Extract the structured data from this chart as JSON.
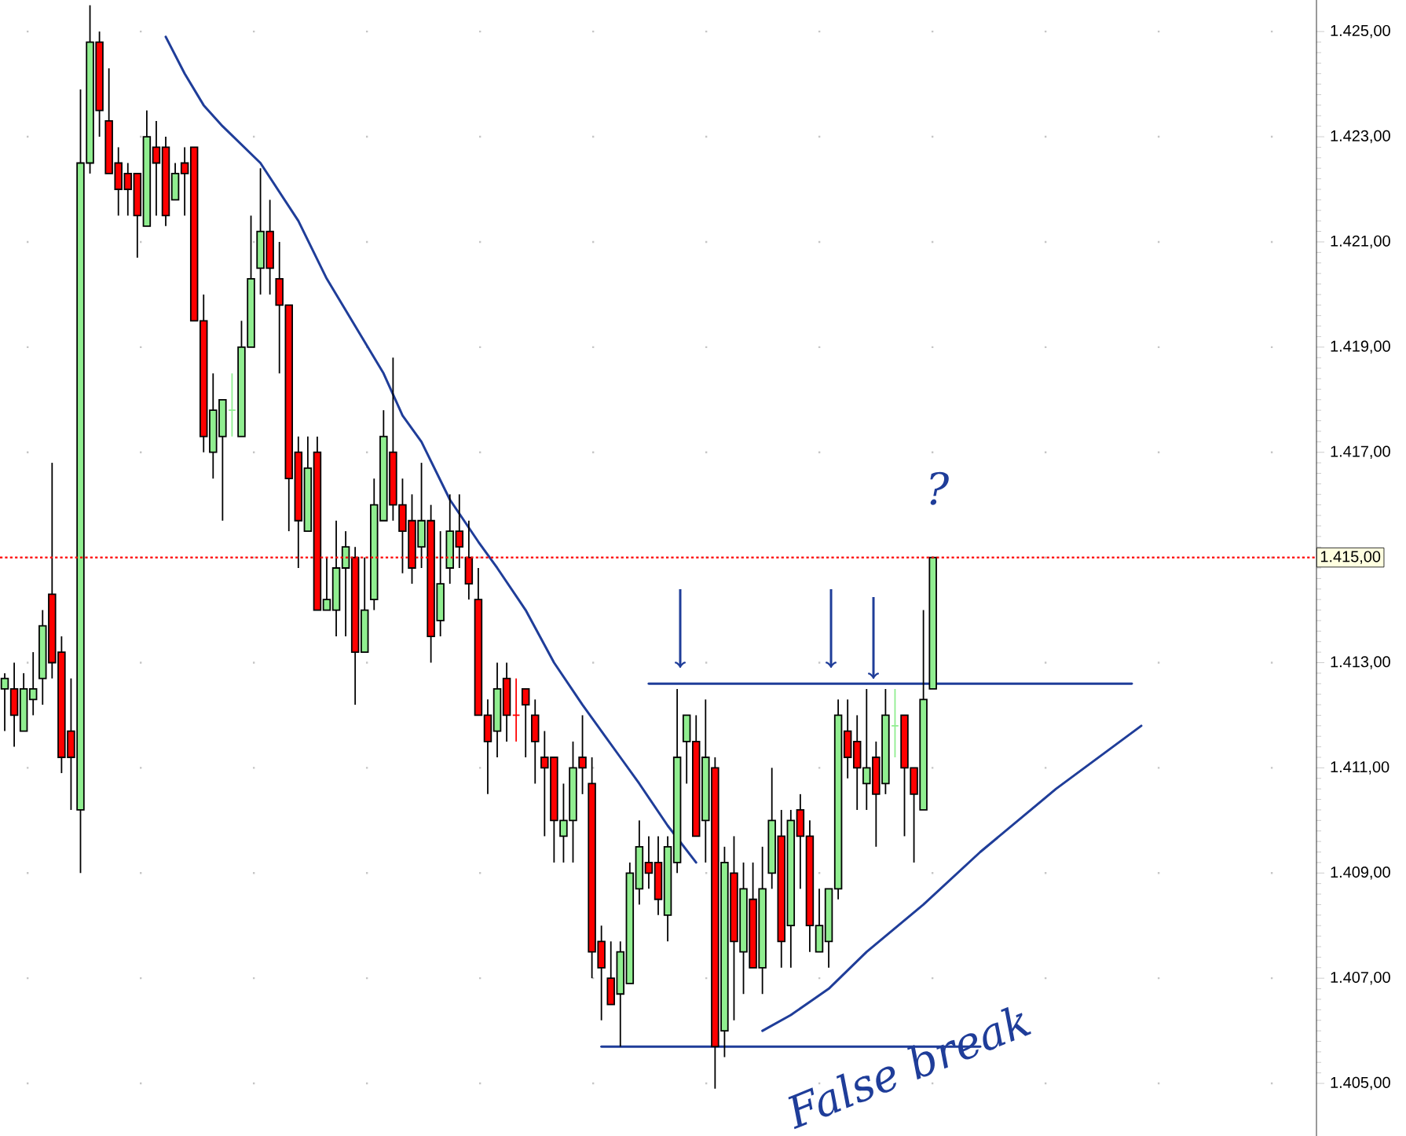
{
  "chart_data": {
    "type": "candlestick",
    "categories": [
      null,
      null,
      null,
      null,
      null,
      null,
      null,
      null,
      null,
      null,
      null,
      null,
      null,
      null,
      null,
      null,
      null,
      null,
      null,
      null,
      null,
      null,
      null,
      null,
      null,
      null,
      null,
      null,
      null,
      null,
      null,
      null,
      null,
      null,
      null,
      null,
      null,
      null,
      null,
      null,
      null,
      null,
      null,
      null,
      null,
      null,
      null,
      null,
      null,
      null,
      null,
      null,
      null,
      null,
      null,
      null,
      null,
      null,
      null,
      null,
      null,
      null,
      null,
      null,
      null,
      null,
      null,
      null,
      null,
      null,
      null,
      null,
      null,
      null,
      null,
      null,
      null,
      null,
      null,
      null,
      null,
      null,
      null,
      null,
      null,
      null,
      null,
      null,
      null,
      null,
      null,
      null,
      null,
      null,
      null,
      null,
      null,
      null,
      null,
      null,
      null,
      null,
      null,
      null,
      null,
      null,
      null,
      null,
      null,
      null,
      null,
      null,
      null,
      null,
      null,
      null,
      null,
      null,
      null,
      null,
      null,
      null,
      null,
      null,
      null,
      null,
      null,
      null,
      null,
      null,
      null,
      null,
      null,
      null,
      null,
      null,
      null,
      null,
      null
    ],
    "ohlc": [
      [
        1412.5,
        1412.8,
        1411.7,
        1412.7
      ],
      [
        1412.5,
        1413,
        1411.4,
        1412
      ],
      [
        1411.7,
        1412.8,
        1411.7,
        1412.5
      ],
      [
        1412.3,
        1413.2,
        1412,
        1412.5
      ],
      [
        1412.7,
        1414,
        1412.2,
        1413.7
      ],
      [
        1414.3,
        1416.8,
        1412.7,
        1413
      ],
      [
        1413.2,
        1413.5,
        1410.9,
        1411.2
      ],
      [
        1411.7,
        1412.7,
        1410.2,
        1411.2
      ],
      [
        1410.2,
        1423.9,
        1409,
        1422.5
      ],
      [
        1422.5,
        1425.5,
        1422.3,
        1424.8
      ],
      [
        1424.8,
        1425,
        1423,
        1423.5
      ],
      [
        1423.3,
        1424.3,
        1422.3,
        1422.3
      ],
      [
        1422.5,
        1422.8,
        1421.5,
        1422
      ],
      [
        1422.3,
        1422.5,
        1421.5,
        1422
      ],
      [
        1422.3,
        1422.3,
        1420.7,
        1421.5
      ],
      [
        1421.3,
        1423.5,
        1421.3,
        1423
      ],
      [
        1422.8,
        1423.3,
        1421.5,
        1422.5
      ],
      [
        1422.8,
        1423,
        1421.3,
        1421.5
      ],
      [
        1421.8,
        1422.5,
        1421.8,
        1422.3
      ],
      [
        1422.5,
        1422.8,
        1421.5,
        1422.3
      ],
      [
        1422.8,
        1422.8,
        1419.5,
        1419.5
      ],
      [
        1419.5,
        1420,
        1417,
        1417.3
      ],
      [
        1417,
        1418.5,
        1416.5,
        1417.8
      ],
      [
        1417.3,
        1418,
        1415.7,
        1418
      ],
      [
        1417.8,
        1418.5,
        1417.3,
        1417.8
      ],
      [
        1417.3,
        1419.5,
        1417.3,
        1419
      ],
      [
        1419,
        1421.5,
        1419,
        1420.3
      ],
      [
        1420.5,
        1422.4,
        1420,
        1421.2
      ],
      [
        1421.2,
        1421.8,
        1420,
        1420.5
      ],
      [
        1420.3,
        1421,
        1418.5,
        1419.8
      ],
      [
        1419.8,
        1419.8,
        1415.5,
        1416.5
      ],
      [
        1417,
        1417.3,
        1414.8,
        1415.7
      ],
      [
        1415.5,
        1417.3,
        1415.5,
        1416.7
      ],
      [
        1417,
        1417.3,
        1414,
        1414
      ],
      [
        1414,
        1415,
        1414,
        1414.2
      ],
      [
        1414,
        1415.7,
        1413.5,
        1414.8
      ],
      [
        1414.8,
        1415.5,
        1413.5,
        1415.2
      ],
      [
        1415,
        1415.2,
        1412.2,
        1413.2
      ],
      [
        1413.2,
        1415,
        1413.2,
        1414
      ],
      [
        1414.2,
        1416.5,
        1414,
        1416
      ],
      [
        1415.7,
        1417.8,
        1415.7,
        1417.3
      ],
      [
        1417,
        1418.8,
        1415.7,
        1416
      ],
      [
        1416,
        1416.5,
        1414.7,
        1415.5
      ],
      [
        1415.7,
        1416.2,
        1414.5,
        1414.8
      ],
      [
        1415.2,
        1416.8,
        1414.8,
        1415.7
      ],
      [
        1415.7,
        1416,
        1413,
        1413.5
      ],
      [
        1413.8,
        1415.5,
        1413.5,
        1414.5
      ],
      [
        1414.8,
        1416.2,
        1414.5,
        1415.5
      ],
      [
        1415.5,
        1416.2,
        1414.8,
        1415.2
      ],
      [
        1415,
        1415.7,
        1414.2,
        1414.5
      ],
      [
        1414.2,
        1414.8,
        1412,
        1412
      ],
      [
        1412,
        1412.3,
        1410.5,
        1411.5
      ],
      [
        1411.7,
        1413,
        1411.2,
        1412.5
      ],
      [
        1412.7,
        1413,
        1411.5,
        1412
      ],
      [
        1412,
        1412.7,
        1411.5,
        1412
      ],
      [
        1412.5,
        1412.5,
        1411.2,
        1412.2
      ],
      [
        1412,
        1412.3,
        1410.7,
        1411.5
      ],
      [
        1411.2,
        1411.7,
        1409.7,
        1411
      ],
      [
        1411.2,
        1411.2,
        1409.2,
        1410
      ],
      [
        1409.7,
        1410.7,
        1409.2,
        1410
      ],
      [
        1410,
        1411.5,
        1409.2,
        1411
      ],
      [
        1411.2,
        1412,
        1410.5,
        1411
      ],
      [
        1410.7,
        1411.2,
        1407,
        1407.5
      ],
      [
        1407.7,
        1408,
        1406.2,
        1407.2
      ],
      [
        1407,
        1407.7,
        1406.5,
        1406.5
      ],
      [
        1406.7,
        1407.7,
        1405.7,
        1407.5
      ],
      [
        1406.9,
        1409.2,
        1406.9,
        1409
      ],
      [
        1408.7,
        1410,
        1408.4,
        1409.5
      ],
      [
        1409.2,
        1409.7,
        1408.7,
        1409
      ],
      [
        1409.2,
        1409.7,
        1408.2,
        1408.5
      ],
      [
        1408.2,
        1409.7,
        1407.7,
        1409.5
      ],
      [
        1409.2,
        1412.5,
        1409,
        1411.2
      ],
      [
        1411.5,
        1412,
        1410.7,
        1412
      ],
      [
        1411.5,
        1412,
        1409.7,
        1409.7
      ],
      [
        1410,
        1412.3,
        1409.2,
        1411.2
      ],
      [
        1411,
        1411.2,
        1404.9,
        1405.7
      ],
      [
        1406,
        1409.5,
        1405.5,
        1409.2
      ],
      [
        1409,
        1409.7,
        1406.2,
        1407.7
      ],
      [
        1407.5,
        1409.2,
        1406.7,
        1408.7
      ],
      [
        1408.5,
        1409.2,
        1407.2,
        1407.2
      ],
      [
        1407.2,
        1409.5,
        1406.7,
        1408.7
      ],
      [
        1409,
        1411,
        1408.7,
        1410
      ],
      [
        1409.7,
        1410.2,
        1407.2,
        1407.7
      ],
      [
        1408,
        1410.2,
        1407.2,
        1410
      ],
      [
        1410.2,
        1410.5,
        1408.7,
        1409.7
      ],
      [
        1409.7,
        1410,
        1407.5,
        1408
      ],
      [
        1407.5,
        1408.7,
        1407.5,
        1408
      ],
      [
        1407.7,
        1408.7,
        1407.2,
        1408.7
      ],
      [
        1408.7,
        1412.3,
        1408.5,
        1412
      ],
      [
        1411.7,
        1412.3,
        1410.8,
        1411.2
      ],
      [
        1411.5,
        1412,
        1410.2,
        1411
      ],
      [
        1410.7,
        1412.5,
        1410.2,
        1411
      ],
      [
        1411.2,
        1411.5,
        1409.5,
        1410.5
      ],
      [
        1410.7,
        1412.5,
        1410.5,
        1412
      ],
      [
        1411.8,
        1412.5,
        1411.2,
        1411.8
      ],
      [
        1412,
        1412,
        1409.7,
        1411
      ],
      [
        1411,
        1411,
        1409.2,
        1410.5
      ],
      [
        1410.2,
        1414,
        1410.2,
        1412.3
      ],
      [
        1412.5,
        1415,
        1412.5,
        1415
      ],
      null,
      null,
      null,
      null,
      null,
      null,
      null,
      null,
      null,
      null,
      null,
      null,
      null,
      null,
      null,
      null,
      null,
      null,
      null,
      null,
      null,
      null,
      null,
      null,
      null,
      null,
      null,
      null,
      null,
      null,
      null,
      null,
      null,
      null,
      null,
      null,
      null,
      null,
      null,
      null
    ],
    "colors": [
      "#90ee90",
      "#ff0000",
      "#90ee90",
      "#90ee90",
      "#90ee90",
      "#ff0000",
      "#ff0000",
      "#ff0000",
      "#90ee90",
      "#90ee90",
      "#ff0000",
      "#ff0000",
      "#ff0000",
      "#ff0000",
      "#ff0000",
      "#90ee90",
      "#ff0000",
      "#ff0000",
      "#90ee90",
      "#ff0000",
      "#ff0000",
      "#ff0000",
      "#90ee90",
      "#90ee90",
      "#90ee90",
      "#90ee90",
      "#90ee90",
      "#90ee90",
      "#ff0000",
      "#ff0000",
      "#ff0000",
      "#ff0000",
      "#90ee90",
      "#ff0000",
      "#90ee90",
      "#90ee90",
      "#90ee90",
      "#ff0000",
      "#90ee90",
      "#90ee90",
      "#90ee90",
      "#ff0000",
      "#ff0000",
      "#ff0000",
      "#90ee90",
      "#ff0000",
      "#90ee90",
      "#90ee90",
      "#ff0000",
      "#ff0000",
      "#ff0000",
      "#ff0000",
      "#90ee90",
      "#ff0000",
      "#ff0000",
      "#ff0000",
      "#ff0000",
      "#ff0000",
      "#ff0000",
      "#90ee90",
      "#90ee90",
      "#ff0000",
      "#ff0000",
      "#ff0000",
      "#ff0000",
      "#90ee90",
      "#90ee90",
      "#90ee90",
      "#ff0000",
      "#ff0000",
      "#90ee90",
      "#90ee90",
      "#90ee90",
      "#ff0000",
      "#90ee90",
      "#ff0000",
      "#90ee90",
      "#ff0000",
      "#90ee90",
      "#ff0000",
      "#90ee90",
      "#90ee90",
      "#ff0000",
      "#90ee90",
      "#ff0000",
      "#ff0000",
      "#90ee90",
      "#90ee90",
      "#90ee90",
      "#ff0000",
      "#ff0000",
      "#90ee90",
      "#ff0000",
      "#90ee90",
      "#90ee90",
      "#ff0000",
      "#ff0000",
      "#90ee90",
      "#90ee90",
      null,
      null,
      null,
      null,
      null,
      null,
      null,
      null,
      null,
      null,
      null,
      null,
      null,
      null,
      null,
      null,
      null,
      null,
      null,
      null,
      null,
      null,
      null,
      null,
      null,
      null,
      null,
      null,
      null,
      null,
      null,
      null,
      null,
      null,
      null,
      null,
      null,
      null,
      null,
      null
    ],
    "series": [
      {
        "type": "line",
        "color": "#1f3d99",
        "values": [
          null,
          null,
          null,
          null,
          null,
          null,
          null,
          null,
          null,
          null,
          null,
          null,
          null,
          null,
          null,
          null,
          null,
          1424.9,
          null,
          1424.2,
          null,
          1423.6,
          null,
          1423.2,
          null,
          null,
          null,
          1422.5,
          null,
          null,
          null,
          1421.4,
          null,
          null,
          1420.3,
          null,
          null,
          1419.4,
          null,
          null,
          1418.5,
          null,
          1417.7,
          null,
          1417.2,
          null,
          null,
          1416.1,
          null,
          null,
          1415.3,
          null,
          1414.8,
          null,
          null,
          1414,
          null,
          null,
          1413,
          null,
          null,
          1412.2,
          null,
          1411.7,
          null,
          1411.2,
          null,
          1410.7,
          null,
          null,
          1409.9,
          null,
          null,
          1409.2,
          null,
          null,
          null,
          null,
          null,
          null,
          null,
          null,
          null,
          null,
          null,
          null,
          null,
          null,
          null,
          null,
          null,
          null,
          null,
          null,
          null,
          null,
          null,
          null,
          null,
          null,
          null,
          null,
          null,
          null,
          null,
          null,
          null,
          null,
          null,
          null,
          null,
          null,
          null,
          null,
          null,
          null,
          null,
          null,
          null,
          null,
          null,
          null,
          null,
          null,
          null,
          null,
          null,
          null,
          null,
          null,
          null,
          null,
          null,
          null,
          null,
          null,
          null,
          null,
          null
        ]
      },
      {
        "type": "line",
        "color": "#1f3d99",
        "values": [
          null,
          null,
          null,
          null,
          null,
          null,
          null,
          null,
          null,
          null,
          null,
          null,
          null,
          null,
          null,
          null,
          null,
          null,
          null,
          null,
          null,
          null,
          null,
          null,
          null,
          null,
          null,
          null,
          null,
          null,
          null,
          null,
          null,
          null,
          null,
          null,
          null,
          null,
          null,
          null,
          null,
          null,
          null,
          null,
          null,
          null,
          null,
          null,
          null,
          null,
          null,
          null,
          null,
          null,
          null,
          null,
          null,
          null,
          null,
          null,
          null,
          null,
          null,
          null,
          null,
          null,
          null,
          null,
          null,
          null,
          null,
          null,
          null,
          null,
          null,
          null,
          null,
          null,
          null,
          null,
          1406,
          null,
          null,
          1406.3,
          null,
          null,
          null,
          1406.8,
          null,
          null,
          null,
          1407.5,
          null,
          null,
          null,
          null,
          null,
          1408.4,
          null,
          null,
          null,
          null,
          null,
          1409.4,
          null,
          null,
          null,
          null,
          null,
          null,
          null,
          1410.6,
          null,
          null,
          null,
          null,
          null,
          null,
          null,
          null,
          1411.8,
          null,
          null,
          null,
          null,
          null,
          null,
          null,
          null,
          null,
          null,
          null,
          null,
          null,
          null,
          null,
          null,
          null,
          null
        ]
      },
      {
        "type": "line",
        "color": "#1f3d99",
        "values": [
          null,
          null,
          null,
          null,
          null,
          null,
          null,
          null,
          null,
          null,
          null,
          null,
          null,
          null,
          null,
          null,
          null,
          null,
          null,
          null,
          null,
          null,
          null,
          null,
          null,
          null,
          null,
          null,
          null,
          null,
          null,
          null,
          null,
          null,
          null,
          null,
          null,
          null,
          null,
          null,
          null,
          null,
          null,
          null,
          null,
          null,
          null,
          null,
          null,
          null,
          null,
          null,
          null,
          null,
          null,
          null,
          null,
          null,
          null,
          null,
          null,
          null,
          null,
          null,
          null,
          null,
          null,
          null,
          1412.6,
          null,
          null,
          null,
          null,
          null,
          null,
          null,
          null,
          null,
          null,
          null,
          null,
          null,
          null,
          null,
          null,
          null,
          null,
          null,
          null,
          null,
          null,
          null,
          null,
          null,
          null,
          null,
          null,
          null,
          null,
          null,
          null,
          null,
          null,
          null,
          null,
          null,
          null,
          null,
          null,
          null,
          null,
          null,
          null,
          null,
          null,
          null,
          null,
          null,
          null,
          1412.6,
          null,
          null,
          null,
          null,
          null,
          null,
          null,
          null,
          null,
          null,
          null,
          null,
          null,
          null,
          null,
          null,
          null,
          null,
          null
        ]
      },
      {
        "type": "line",
        "color": "#1f3d99",
        "values": [
          null,
          null,
          null,
          null,
          null,
          null,
          null,
          null,
          null,
          null,
          null,
          null,
          null,
          null,
          null,
          null,
          null,
          null,
          null,
          null,
          null,
          null,
          null,
          null,
          null,
          null,
          null,
          null,
          null,
          null,
          null,
          null,
          null,
          null,
          null,
          null,
          null,
          null,
          null,
          null,
          null,
          null,
          null,
          null,
          null,
          null,
          null,
          null,
          null,
          null,
          null,
          null,
          null,
          null,
          null,
          null,
          null,
          null,
          null,
          null,
          null,
          null,
          null,
          1405.7,
          null,
          null,
          null,
          null,
          null,
          null,
          null,
          null,
          null,
          null,
          null,
          null,
          null,
          null,
          null,
          null,
          null,
          null,
          null,
          null,
          null,
          null,
          null,
          null,
          null,
          null,
          null,
          null,
          null,
          null,
          null,
          null,
          null,
          null,
          null,
          null,
          null,
          null,
          null,
          1405.7,
          null,
          null,
          null,
          null,
          null,
          null,
          null,
          null,
          null,
          null,
          null,
          null,
          null,
          null,
          null,
          null,
          null,
          null,
          null,
          null,
          null,
          null,
          null,
          null,
          null,
          null,
          null,
          null,
          null,
          null,
          null,
          null,
          null,
          null,
          null
        ]
      }
    ],
    "ylim": [
      1404,
      1425.6
    ],
    "yticks": [
      {
        "value": 1405,
        "label": "1.405,00"
      },
      {
        "value": 1407,
        "label": "1.407,00"
      },
      {
        "value": 1409,
        "label": "1.409,00"
      },
      {
        "value": 1411,
        "label": "1.411,00"
      },
      {
        "value": 1413,
        "label": "1.413,00"
      },
      {
        "value": 1415,
        "label": null
      },
      {
        "value": 1417,
        "label": "1.417,00"
      },
      {
        "value": 1419,
        "label": "1.419,00"
      },
      {
        "value": 1421,
        "label": "1.421,00"
      },
      {
        "value": 1423,
        "label": "1.423,00"
      },
      {
        "value": 1425,
        "label": "1.425,00"
      }
    ],
    "ref_lines": [
      {
        "axis": "y",
        "value": 1415,
        "label": "1.415,00",
        "color": "#ff0000",
        "line_style": "dotted"
      }
    ],
    "annotations": [
      "?",
      "False break"
    ],
    "grid": "y",
    "tick_labels": "y"
  }
}
